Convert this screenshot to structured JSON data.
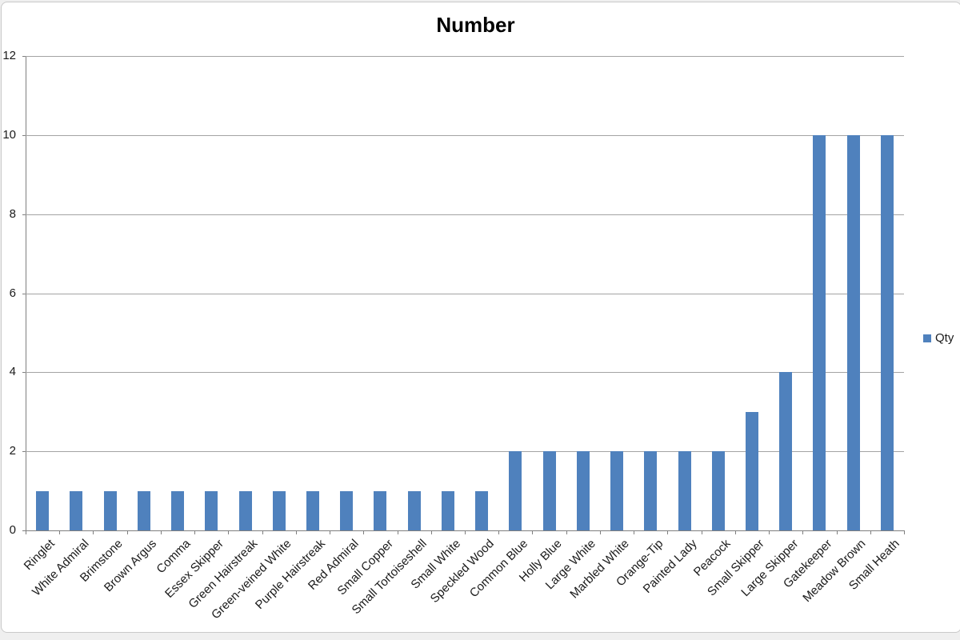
{
  "chart_data": {
    "type": "bar",
    "title": "Number",
    "categories": [
      "Ringlet",
      "White Admiral",
      "Brimstone",
      "Brown Argus",
      "Comma",
      "Essex Skipper",
      "Green Hairstreak",
      "Green-veined White",
      "Purple Hairstreak",
      "Red Admiral",
      "Small Copper",
      "Small Tortoiseshell",
      "Small White",
      "Speckled Wood",
      "Common Blue",
      "Holly Blue",
      "Large White",
      "Marbled White",
      "Orange-Tip",
      "Painted Lady",
      "Peacock",
      "Small Skipper",
      "Large Skipper",
      "Gatekeeper",
      "Meadow Brown",
      "Small Heath"
    ],
    "series": [
      {
        "name": "Qty",
        "values": [
          1,
          1,
          1,
          1,
          1,
          1,
          1,
          1,
          1,
          1,
          1,
          1,
          1,
          1,
          2,
          2,
          2,
          2,
          2,
          2,
          2,
          3,
          4,
          10,
          10,
          10
        ]
      }
    ],
    "xlabel": "",
    "ylabel": "",
    "ylim": [
      0,
      12
    ],
    "ytick_step": 2,
    "grid": true,
    "legend_position": "right",
    "bar_color": "#4F81BD",
    "gridline_color": "#A3A3A3",
    "axis_color": "#7F7F7F",
    "x_label_rotation_deg": 45
  }
}
